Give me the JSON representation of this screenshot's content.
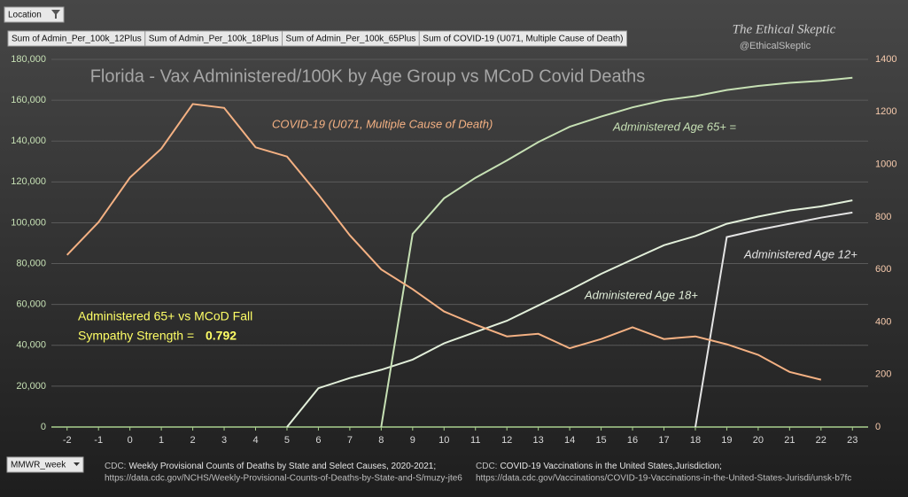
{
  "chart_data": {
    "type": "line",
    "title": "Florida - Vax Administered/100K by Age Group vs MCoD Covid Deaths",
    "filter_button": "Location",
    "axis_button": "MMWR_week",
    "branding": {
      "name": "The Ethical Skeptic",
      "handle": "@EthicalSkeptic"
    },
    "x": [
      -2,
      -1,
      0,
      1,
      2,
      3,
      4,
      5,
      6,
      7,
      8,
      9,
      10,
      11,
      12,
      13,
      14,
      15,
      16,
      17,
      18,
      19,
      20,
      21,
      22,
      23
    ],
    "xlim": [
      -2.5,
      23.5
    ],
    "xticks": [
      -2,
      -1,
      0,
      1,
      2,
      3,
      4,
      5,
      6,
      7,
      8,
      9,
      10,
      11,
      12,
      13,
      14,
      15,
      16,
      17,
      18,
      19,
      20,
      21,
      22,
      23
    ],
    "ylim": [
      0,
      180000
    ],
    "yticks": [
      0,
      {
        "value": 20000,
        "label": "20,000"
      },
      {
        "value": 40000,
        "label": "40,000"
      },
      {
        "value": 60000,
        "label": "60,000"
      },
      {
        "value": 80000,
        "label": "80,000"
      },
      {
        "value": 100000,
        "label": "100,000"
      },
      {
        "value": 120000,
        "label": "120,000"
      },
      {
        "value": 140000,
        "label": "140,000"
      },
      {
        "value": 160000,
        "label": "160,000"
      },
      {
        "value": 180000,
        "label": "180,000"
      }
    ],
    "y2lim": [
      0,
      1400
    ],
    "y2ticks": [
      0,
      200,
      400,
      600,
      800,
      1000,
      1200,
      1400
    ],
    "grid": true,
    "series": [
      {
        "name": "Sum of Admin_Per_100k_12Plus",
        "color": "#e4e4e4",
        "axis": "y",
        "values": [
          null,
          null,
          null,
          null,
          null,
          null,
          null,
          null,
          null,
          null,
          null,
          null,
          null,
          null,
          null,
          null,
          null,
          null,
          null,
          null,
          0,
          93000,
          96500,
          99500,
          102500,
          105000
        ]
      },
      {
        "name": "Sum of Admin_Per_100k_18Plus",
        "color": "#e2efda",
        "axis": "y",
        "values": [
          null,
          null,
          null,
          null,
          null,
          null,
          null,
          0,
          19000,
          24000,
          28000,
          33000,
          41000,
          46500,
          52000,
          59500,
          67000,
          75000,
          82000,
          89000,
          93500,
          99500,
          103000,
          106000,
          108000,
          111000
        ]
      },
      {
        "name": "Sum of Admin_Per_100k_65Plus",
        "color": "#c6e0b4",
        "axis": "y",
        "values": [
          null,
          null,
          null,
          null,
          null,
          null,
          null,
          null,
          null,
          null,
          0,
          94500,
          112000,
          122000,
          130500,
          139500,
          147000,
          152000,
          156500,
          160000,
          162000,
          165000,
          167000,
          168500,
          169500,
          171000
        ]
      },
      {
        "name": "Sum of COVID-19 (U071, Multiple Cause of Death)",
        "color": "#f4b183",
        "axis": "y2",
        "values": [
          655,
          780,
          950,
          1060,
          1230,
          1215,
          1065,
          1030,
          885,
          730,
          600,
          525,
          440,
          390,
          345,
          355,
          300,
          335,
          380,
          335,
          345,
          315,
          275,
          210,
          180,
          null
        ]
      }
    ],
    "annotations": [
      "COVID-19 (U071, Multiple Cause of Death)",
      "Administered Age 65+ =",
      "Administered Age 12+",
      "Administered Age 18+"
    ],
    "stat_label": [
      "Administered 65+ vs MCoD Fall",
      "Sympathy Strength  ="
    ],
    "sympathy_strength": 0.792,
    "sources": [
      {
        "prefix": "CDC:",
        "title": "Weekly Provisional Counts of Deaths by State and Select Causes, 2020-2021;",
        "url": "https://data.cdc.gov/NCHS/Weekly-Provisional-Counts-of-Deaths-by-State-and-S/muzy-jte6"
      },
      {
        "prefix": "CDC:",
        "title": "COVID-19 Vaccinations in the United States,Jurisdiction;",
        "url": "https://data.cdc.gov/Vaccinations/COVID-19-Vaccinations-in-the-United-States-Jurisdi/unsk-b7fc"
      }
    ]
  }
}
